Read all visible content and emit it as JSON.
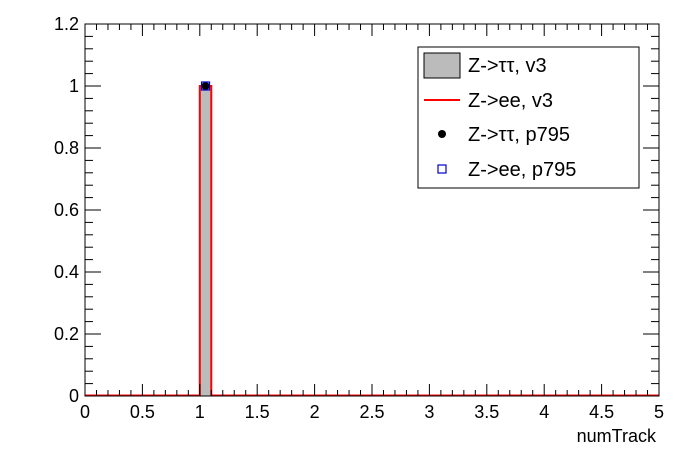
{
  "chart_data": {
    "type": "histogram",
    "xlabel": "numTrack",
    "ylabel": "",
    "title": "",
    "xlim": [
      0,
      5
    ],
    "ylim": [
      0,
      1.2
    ],
    "bin_width": 0.1,
    "x_ticks": [
      "0",
      "0.5",
      "1",
      "1.5",
      "2",
      "2.5",
      "3",
      "3.5",
      "4",
      "4.5",
      "5"
    ],
    "y_ticks": [
      "0",
      "0.2",
      "0.4",
      "0.6",
      "0.8",
      "1",
      "1.2"
    ],
    "grid": false,
    "legend_position": "top-right",
    "series": [
      {
        "name": "Z->ττ, v3",
        "style": "filled-histogram",
        "color": "#bbbbbb",
        "bins": [
          {
            "x": 1.0,
            "y": 1.0
          }
        ]
      },
      {
        "name": "Z->ee, v3",
        "style": "line-histogram",
        "color": "#ff0000",
        "bins": [
          {
            "x": 1.0,
            "y": 1.0
          }
        ]
      },
      {
        "name": "Z->ττ, p795",
        "style": "marker-filled-circle",
        "color": "#000000",
        "points": [
          {
            "x": 1.05,
            "y": 1.0
          }
        ]
      },
      {
        "name": "Z->ee, p795",
        "style": "marker-open-square",
        "color": "#0000cc",
        "points": [
          {
            "x": 1.05,
            "y": 1.0
          }
        ]
      }
    ]
  }
}
